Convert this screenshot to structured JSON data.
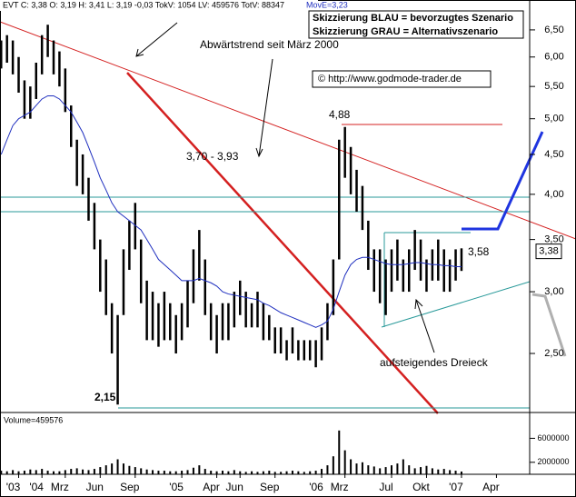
{
  "chart_data": {
    "type": "ohlc",
    "header": "EVT C: 3,38 O: 3,19 H: 3,41 L: 3,19 -0,03 TokV: 1054 LV: 459576 TotV: 88347",
    "ma_label": "MovE=3,23",
    "ma_color": "#1f2fbf",
    "bar_color": "#000000",
    "last_label": "3,38",
    "last_value": 3.38,
    "log_scale": true,
    "x": [
      8.5,
      9,
      9.5,
      10,
      10.5,
      11,
      11.5,
      12,
      12.5,
      13,
      13.5,
      14,
      14.5,
      15,
      15.5,
      16,
      16.5,
      17,
      17.5,
      18,
      18.5,
      19,
      19.5,
      20,
      20.5,
      21,
      21.5,
      22,
      22.5,
      23,
      23.5,
      24,
      24.5,
      25,
      25.5,
      26,
      26.5,
      27,
      27.5,
      28,
      28.5,
      29,
      29.5,
      30,
      30.5,
      31,
      31.5,
      32,
      32.5,
      33,
      33.5,
      34,
      34.5,
      35,
      35.5,
      36,
      36.5,
      37,
      37.5,
      38,
      38.5,
      39,
      39.5,
      40,
      40.5,
      41,
      41.5,
      42,
      42.5,
      43,
      43.5,
      44,
      44.5,
      45,
      45.5,
      46,
      46.5,
      47,
      47.5,
      48
    ],
    "high": [
      6.3,
      6.4,
      6.3,
      6.0,
      5.6,
      5.5,
      5.9,
      6.4,
      6.6,
      6.3,
      6.1,
      5.8,
      5.2,
      4.7,
      4.5,
      4.2,
      3.9,
      3.5,
      3.3,
      2.9,
      2.8,
      3.4,
      3.7,
      3.9,
      3.5,
      3.1,
      3.0,
      2.9,
      3.0,
      2.9,
      2.8,
      2.9,
      3.1,
      3.4,
      3.6,
      3.3,
      2.9,
      2.8,
      2.9,
      2.9,
      3.0,
      3.1,
      3.0,
      2.9,
      3.0,
      2.9,
      2.8,
      2.7,
      2.7,
      2.6,
      2.7,
      2.6,
      2.6,
      2.6,
      2.6,
      2.7,
      2.9,
      3.3,
      4.7,
      4.88,
      4.6,
      4.3,
      4.1,
      3.7,
      3.4,
      3.4,
      3.3,
      3.4,
      3.5,
      3.3,
      3.4,
      3.6,
      3.5,
      3.3,
      3.4,
      3.5,
      3.4,
      3.3,
      3.4,
      3.41
    ],
    "low": [
      5.8,
      5.9,
      5.7,
      5.4,
      5.0,
      5.0,
      5.3,
      5.7,
      6.0,
      5.7,
      5.5,
      5.1,
      4.6,
      4.1,
      4.0,
      3.7,
      3.4,
      3.0,
      2.8,
      2.5,
      2.15,
      2.8,
      3.2,
      3.4,
      2.9,
      2.6,
      2.6,
      2.55,
      2.6,
      2.6,
      2.5,
      2.6,
      2.7,
      2.9,
      3.1,
      2.8,
      2.6,
      2.5,
      2.6,
      2.6,
      2.7,
      2.8,
      2.7,
      2.7,
      2.7,
      2.6,
      2.6,
      2.5,
      2.5,
      2.45,
      2.5,
      2.45,
      2.45,
      2.45,
      2.4,
      2.45,
      2.6,
      2.8,
      3.3,
      4.2,
      4.0,
      3.8,
      3.6,
      3.2,
      3.0,
      2.9,
      2.8,
      3.0,
      3.1,
      3.0,
      3.0,
      3.2,
      3.1,
      3.0,
      3.1,
      3.1,
      3.0,
      3.0,
      3.1,
      3.19
    ],
    "ma": [
      4.5,
      4.7,
      4.9,
      5.0,
      5.05,
      5.1,
      5.2,
      5.3,
      5.35,
      5.35,
      5.3,
      5.2,
      5.1,
      4.95,
      4.8,
      4.6,
      4.4,
      4.2,
      4.05,
      3.9,
      3.8,
      3.75,
      3.7,
      3.65,
      3.6,
      3.5,
      3.4,
      3.3,
      3.25,
      3.2,
      3.15,
      3.1,
      3.1,
      3.1,
      3.12,
      3.1,
      3.08,
      3.05,
      3.0,
      2.98,
      2.97,
      2.96,
      2.95,
      2.94,
      2.93,
      2.9,
      2.88,
      2.85,
      2.82,
      2.8,
      2.78,
      2.76,
      2.74,
      2.72,
      2.7,
      2.72,
      2.75,
      2.85,
      3.0,
      3.15,
      3.25,
      3.3,
      3.32,
      3.32,
      3.3,
      3.28,
      3.26,
      3.25,
      3.25,
      3.25,
      3.26,
      3.27,
      3.27,
      3.26,
      3.25,
      3.25,
      3.24,
      3.24,
      3.23,
      3.23
    ],
    "xlim": [
      8.4,
      53.85
    ],
    "ylim": [
      2.1,
      7.1
    ],
    "xticks": [
      {
        "value": 10,
        "label": "'03"
      },
      {
        "value": 12,
        "label": "'04"
      },
      {
        "value": 14,
        "label": "Mrz"
      },
      {
        "value": 17,
        "label": "Jun"
      },
      {
        "value": 20,
        "label": "Sep"
      },
      {
        "value": 24,
        "label": "'05"
      },
      {
        "value": 27,
        "label": "Apr"
      },
      {
        "value": 29,
        "label": "Jun"
      },
      {
        "value": 32,
        "label": "Sep"
      },
      {
        "value": 36,
        "label": "'06"
      },
      {
        "value": 38,
        "label": "Mrz"
      },
      {
        "value": 42,
        "label": "Jul"
      },
      {
        "value": 45,
        "label": "Okt"
      },
      {
        "value": 48,
        "label": "'07"
      },
      {
        "value": 51,
        "label": "Apr"
      }
    ],
    "yticks": [
      {
        "value": 6.5,
        "label": "6,50"
      },
      {
        "value": 6,
        "label": "6,00"
      },
      {
        "value": 5.5,
        "label": "5,50"
      },
      {
        "value": 5,
        "label": "5,00"
      },
      {
        "value": 4.5,
        "label": "4,50"
      },
      {
        "value": 4,
        "label": "4,00"
      },
      {
        "value": 3.5,
        "label": "3,50"
      },
      {
        "value": 3,
        "label": "3,00"
      },
      {
        "value": 2.5,
        "label": "2,50"
      }
    ],
    "volume": {
      "label": "Volume=459576",
      "values": [
        600000,
        500000,
        700000,
        500000,
        600000,
        800000,
        700000,
        900000,
        600000,
        500000,
        500000,
        700000,
        900000,
        1000000,
        800000,
        700000,
        900000,
        1200000,
        1500000,
        1800000,
        2500000,
        1800000,
        1400000,
        1200000,
        1000000,
        800000,
        700000,
        600000,
        600000,
        500000,
        500000,
        600000,
        700000,
        1100000,
        1500000,
        900000,
        600000,
        500000,
        600000,
        500000,
        700000,
        500000,
        400000,
        500000,
        400000,
        500000,
        600000,
        400000,
        400000,
        500000,
        600000,
        500000,
        400000,
        500000,
        600000,
        900000,
        1500000,
        3000000,
        7300000,
        4000000,
        2500000,
        1800000,
        2000000,
        1500000,
        1300000,
        1000000,
        1200000,
        1500000,
        1800000,
        2500000,
        1500000,
        1000000,
        1200000,
        1400000,
        1000000,
        800000,
        900000,
        700000,
        600000,
        459576
      ],
      "ylim": [
        0,
        10000000
      ],
      "yticks": [
        6000000,
        2000000
      ]
    },
    "annotations": {
      "trend": "Abwärtstrend seit  März 2000",
      "range": "3,70 - 3,93",
      "high": "4,88",
      "triangle_top": "3,58",
      "triangle": "aufsteigendes Dreieck",
      "low": "2,15",
      "copyright": "© http://www.godmode-trader.de",
      "legend_blue": "Skizzierung BLAU = bevorzugtes Szenario",
      "legend_grey": "Skizzierung GRAU = Alternativszenario"
    }
  }
}
